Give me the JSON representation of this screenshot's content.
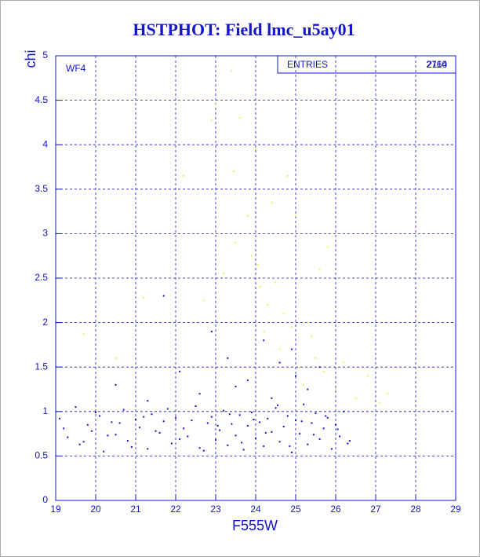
{
  "chart_data": {
    "type": "scatter",
    "title": "HSTPHOT: Field lmc_u5ay01",
    "x_label": "F555W",
    "y_label": "chi",
    "panel_label": "WF4",
    "stats_label": "ENTRIES",
    "stats_values": [
      2760,
      2114
    ],
    "xlim": [
      19,
      29
    ],
    "ylim": [
      0,
      5
    ],
    "xticks": [
      19,
      20,
      21,
      22,
      23,
      24,
      25,
      26,
      27,
      28,
      29
    ],
    "yticks": [
      0,
      0.5,
      1,
      1.5,
      2,
      2.5,
      3,
      3.5,
      4,
      4.5,
      5
    ],
    "grid": true,
    "series": [
      {
        "color": "#f0ec5a",
        "x": [
          19.7,
          20.5,
          21.2,
          22.7,
          22.9,
          23.0,
          23.2,
          23.4,
          23.5,
          23.6,
          23.8,
          23.9,
          24.0,
          24.1,
          24.2,
          24.3,
          24.4,
          24.5,
          24.6,
          24.7,
          24.8,
          24.9,
          25.0,
          25.1,
          25.2,
          25.3,
          25.4,
          25.5,
          25.6,
          25.7,
          25.8,
          26.0,
          26.2,
          26.5,
          26.8,
          27.1,
          27.3,
          23.45,
          24.05,
          22.2
        ],
        "values": [
          1.87,
          1.6,
          2.28,
          2.25,
          4.28,
          4.45,
          2.55,
          4.83,
          2.9,
          4.3,
          3.2,
          2.75,
          3.95,
          2.4,
          1.9,
          2.2,
          3.35,
          2.45,
          1.7,
          2.1,
          3.65,
          1.95,
          3.2,
          1.5,
          1.3,
          2.0,
          1.85,
          1.6,
          2.6,
          1.45,
          2.85,
          1.25,
          1.55,
          1.15,
          1.4,
          1.1,
          1.2,
          3.7,
          2.65,
          3.65
        ]
      },
      {
        "color": "#1414c8",
        "x": [
          19.1,
          19.3,
          19.5,
          19.6,
          19.8,
          19.9,
          20.1,
          20.2,
          20.4,
          20.5,
          20.7,
          20.8,
          21.0,
          21.1,
          21.3,
          21.4,
          21.6,
          21.7,
          21.9,
          22.0,
          22.2,
          22.3,
          22.5,
          22.6,
          22.8,
          22.9,
          23.0,
          23.1,
          23.2,
          23.3,
          23.4,
          23.5,
          23.6,
          23.7,
          23.8,
          23.9,
          24.0,
          24.1,
          24.2,
          24.3,
          24.4,
          24.5,
          24.6,
          24.7,
          24.8,
          24.9,
          25.0,
          25.1,
          25.2,
          25.3,
          25.4,
          25.5,
          25.6,
          25.7,
          25.8,
          25.9,
          26.0,
          26.1,
          26.2,
          26.3,
          19.2,
          19.7,
          20.0,
          20.3,
          20.6,
          20.9,
          21.2,
          21.5,
          21.8,
          22.1,
          22.4,
          22.7,
          23.05,
          23.35,
          23.65,
          23.95,
          24.25,
          24.55,
          24.85,
          25.15,
          25.45,
          25.75,
          26.05,
          26.35,
          20.5,
          21.7,
          22.1,
          22.6,
          23.3,
          23.8,
          24.2,
          24.6,
          25.0,
          25.3,
          25.6,
          24.9,
          24.4,
          23.5,
          22.9,
          21.3
        ],
        "values": [
          0.92,
          0.71,
          1.05,
          0.63,
          0.85,
          0.78,
          0.95,
          0.55,
          0.88,
          0.74,
          1.02,
          0.67,
          0.91,
          0.82,
          0.58,
          0.97,
          0.76,
          0.89,
          0.64,
          0.93,
          0.81,
          0.72,
          1.06,
          0.59,
          0.87,
          0.94,
          0.68,
          0.79,
          1.01,
          0.62,
          0.86,
          0.73,
          0.96,
          0.57,
          0.84,
          0.99,
          0.7,
          0.88,
          0.61,
          0.92,
          0.77,
          1.04,
          0.66,
          0.83,
          0.95,
          0.54,
          0.9,
          0.75,
          1.08,
          0.63,
          0.87,
          0.98,
          0.69,
          0.81,
          0.93,
          0.58,
          0.85,
          0.72,
          1.0,
          0.64,
          0.81,
          0.66,
          0.99,
          0.73,
          0.87,
          0.6,
          0.94,
          0.78,
          1.03,
          0.69,
          0.9,
          0.56,
          0.84,
          0.97,
          0.65,
          0.91,
          0.76,
          1.07,
          0.61,
          0.89,
          0.74,
          0.95,
          0.8,
          0.67,
          1.3,
          2.3,
          1.45,
          1.2,
          1.6,
          1.35,
          1.8,
          1.55,
          1.4,
          1.25,
          1.5,
          1.7,
          1.15,
          1.28,
          1.9,
          1.12
        ]
      }
    ]
  }
}
